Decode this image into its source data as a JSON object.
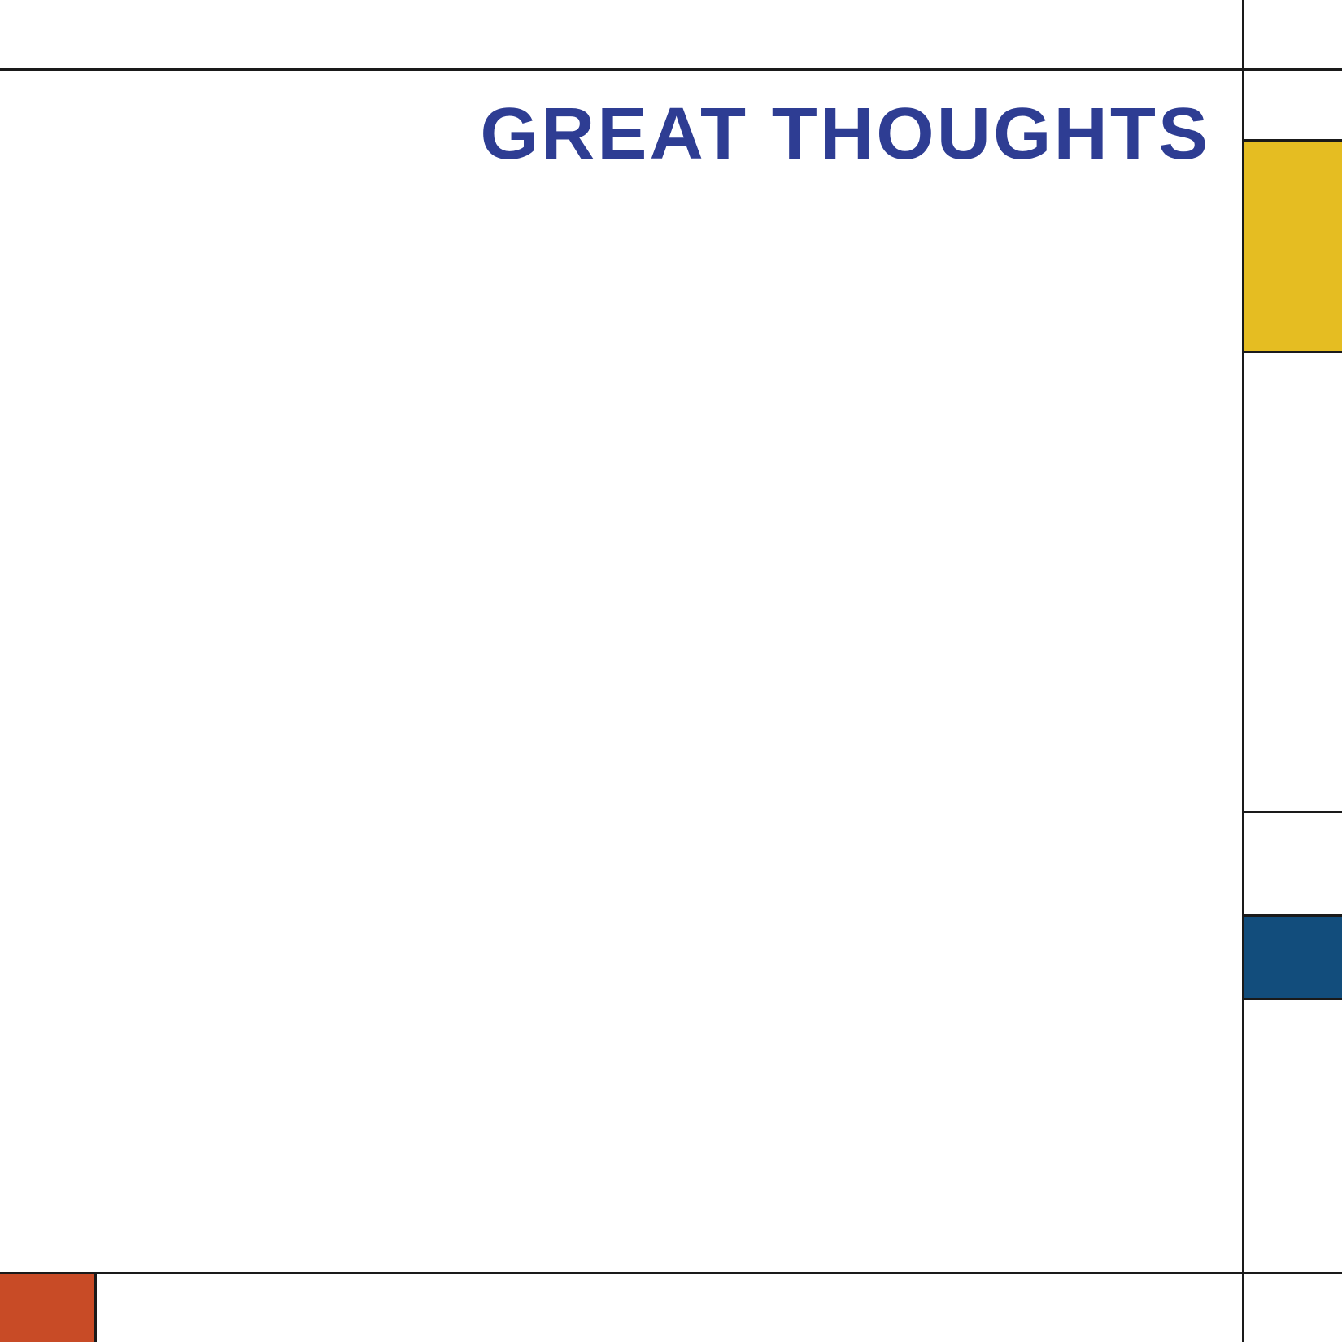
{
  "title": "GREAT THOUGHTS",
  "colors": {
    "title": "#2e3d93",
    "yellow": "#e5bd22",
    "blue": "#124d7c",
    "orange": "#c84b26",
    "lines": "#1a1a1a",
    "background": "#ffffff"
  }
}
